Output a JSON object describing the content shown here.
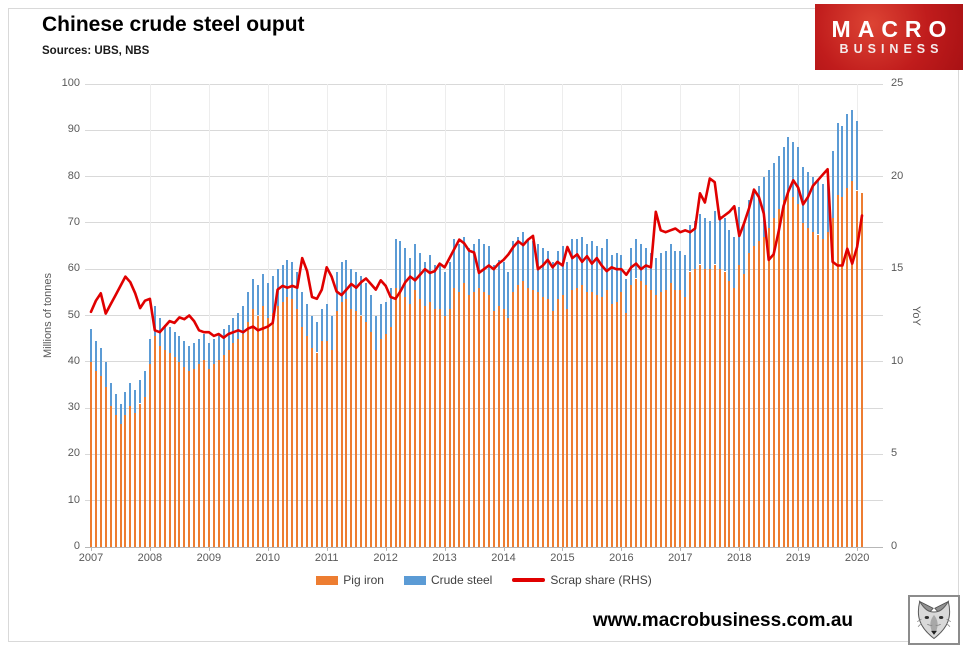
{
  "header": {
    "title": "Chinese crude steel ouput",
    "subtitle": "Sources: UBS, NBS",
    "logo": {
      "line1": "MACRO",
      "line2": "BUSINESS",
      "bg_color": "#c01c1c"
    }
  },
  "footer": {
    "website": "www.macrobusiness.com.au",
    "logo_name": "wolf-logo"
  },
  "colors": {
    "pig_iron": "#ED7D31",
    "crude_steel": "#5B9BD5",
    "scrap_share": "#E00000",
    "grid": "#d9d9d9",
    "axis_text": "#595959",
    "legend_text": "#404040"
  },
  "chart_data": {
    "type": "bar",
    "title": "Chinese crude steel ouput",
    "x_start": "2007-01",
    "x_end": "2020-02",
    "x_frequency": "monthly",
    "year_labels": [
      "2007",
      "2008",
      "2009",
      "2010",
      "2011",
      "2012",
      "2013",
      "2014",
      "2015",
      "2016",
      "2017",
      "2018",
      "2019",
      "2020"
    ],
    "left_axis": {
      "label": "Millions of tonnes",
      "min": 0,
      "max": 100,
      "step": 10,
      "ticks": [
        0,
        10,
        20,
        30,
        40,
        50,
        60,
        70,
        80,
        90,
        100
      ]
    },
    "right_axis": {
      "label": "YoY",
      "min": 0,
      "max": 25,
      "step": 5,
      "ticks": [
        0,
        5,
        10,
        15,
        20,
        25
      ]
    },
    "grid": "on",
    "legend_position": "bottom",
    "legend": [
      {
        "label": "Pig iron",
        "type": "bar",
        "color": "#ED7D31"
      },
      {
        "label": "Crude steel",
        "type": "bar",
        "color": "#5B9BD5"
      },
      {
        "label": "Scrap share (RHS)",
        "type": "line",
        "color": "#E00000"
      }
    ],
    "series": [
      {
        "name": "Pig iron",
        "type": "bar",
        "axis": "left",
        "color": "#ED7D31",
        "values": [
          40,
          38,
          37,
          34.5,
          30.5,
          28.5,
          26.5,
          28.5,
          30.5,
          29,
          31,
          32.5,
          39.5,
          45.5,
          43.5,
          42.5,
          42,
          41,
          40,
          39,
          38,
          38.5,
          39.5,
          40.5,
          38.5,
          39.5,
          40.5,
          41.5,
          42.5,
          44,
          45,
          46,
          48.5,
          51.5,
          50,
          52,
          49.5,
          50.5,
          52,
          53,
          54,
          53.5,
          51.5,
          47.5,
          45.5,
          43,
          42,
          44.5,
          44.5,
          42.5,
          51,
          53,
          53.5,
          51.5,
          51,
          50,
          48.5,
          46.5,
          42.5,
          45,
          46,
          47.5,
          56,
          55.5,
          54,
          52.5,
          55.5,
          53.5,
          52,
          53,
          51.5,
          51.5,
          50,
          51.5,
          56,
          55,
          57,
          54.5,
          55,
          56,
          55,
          54.5,
          51,
          52,
          51.5,
          49.5,
          55,
          56.5,
          57.5,
          56,
          55.5,
          55,
          54,
          53.5,
          51,
          53.5,
          54.5,
          51.5,
          55.5,
          56,
          56.5,
          55,
          55,
          54.5,
          54,
          55.5,
          52.5,
          53,
          55,
          50.5,
          56.5,
          58,
          57.5,
          56.5,
          55.5,
          54.5,
          55,
          55.5,
          57,
          55.5,
          55.5,
          54,
          59.5,
          60,
          61,
          60,
          60,
          61,
          60,
          59.5,
          57.5,
          56,
          61,
          59,
          63.5,
          65,
          66,
          67,
          69,
          71,
          73,
          75,
          76.5,
          75.5,
          74,
          70,
          69,
          68,
          67.5,
          66.5,
          68,
          71,
          76,
          75.5,
          77.5,
          79,
          77,
          76.5
        ]
      },
      {
        "name": "Crude steel",
        "type": "bar",
        "axis": "left",
        "color": "#5B9BD5",
        "values": [
          47,
          44.5,
          43,
          40,
          35.5,
          33,
          31,
          33.5,
          35.5,
          34,
          36,
          38,
          45,
          52,
          49.5,
          48,
          47.5,
          46.5,
          45.5,
          44.5,
          43.5,
          44,
          45,
          46,
          44,
          45,
          46,
          47,
          48,
          49.5,
          50.5,
          52,
          55,
          58,
          56.5,
          59,
          57,
          58.5,
          60,
          61,
          62,
          61.5,
          59.5,
          55,
          52.5,
          50,
          48.5,
          51.5,
          52.5,
          50,
          59.5,
          61.5,
          62,
          60,
          59.5,
          58.5,
          57,
          54.5,
          50,
          52.5,
          53,
          56,
          66.5,
          66,
          64.5,
          62.5,
          65.5,
          63.5,
          61.5,
          63,
          61,
          61,
          59.5,
          61.5,
          66.5,
          65.5,
          67,
          64.5,
          65.5,
          66.5,
          65.5,
          65,
          61,
          62,
          61.5,
          59.5,
          66,
          67,
          68,
          66.5,
          66,
          65.5,
          64.5,
          64,
          61.5,
          64,
          65,
          61.5,
          66.5,
          66.5,
          67,
          65.5,
          66,
          65,
          64.5,
          66.5,
          63,
          63.5,
          63,
          58,
          64.5,
          66.5,
          65.5,
          64.5,
          63.5,
          62.5,
          63.5,
          64,
          65.5,
          64,
          64,
          63,
          69.5,
          70.5,
          72,
          71,
          70.5,
          72.5,
          71.5,
          71,
          68.5,
          67,
          73.5,
          70,
          75,
          76.5,
          78,
          80,
          81.5,
          83,
          84.5,
          86.5,
          88.5,
          87.5,
          86.5,
          82,
          81,
          80,
          79.5,
          78.5,
          81,
          85.5,
          91.5,
          91,
          93.5,
          94.5,
          92,
          null
        ]
      },
      {
        "name": "Scrap share (RHS)",
        "type": "line",
        "axis": "right",
        "color": "#E00000",
        "values": [
          12.7,
          13.3,
          13.7,
          12.6,
          13.1,
          13.6,
          14.1,
          14.6,
          14.3,
          13.7,
          12.9,
          13.3,
          13.4,
          11.7,
          11.6,
          11.9,
          12.2,
          12.1,
          12.4,
          12.3,
          12.5,
          12.2,
          11.7,
          11.6,
          11.6,
          11.4,
          11.5,
          11.3,
          11.5,
          11.6,
          11.7,
          11.6,
          11.8,
          11.9,
          11.7,
          11.8,
          11.9,
          12.1,
          13.9,
          14.1,
          14.0,
          14.1,
          14.0,
          15.6,
          14.9,
          13.5,
          13.4,
          13.9,
          15.1,
          14.6,
          13.8,
          13.6,
          13.9,
          14.2,
          14.0,
          14.3,
          14.5,
          14.2,
          13.9,
          14.4,
          14.1,
          13.5,
          13.4,
          13.8,
          14.3,
          14.6,
          14.4,
          14.7,
          15.0,
          14.8,
          14.9,
          15.3,
          15.1,
          15.6,
          16.1,
          16.6,
          16.4,
          16.0,
          15.9,
          14.8,
          15.0,
          15.2,
          15.0,
          15.3,
          15.5,
          15.8,
          16.2,
          16.5,
          16.3,
          16.6,
          16.8,
          15.0,
          15.2,
          15.5,
          15.1,
          15.4,
          15.2,
          16.2,
          15.6,
          15.8,
          15.4,
          15.7,
          15.3,
          15.6,
          15.2,
          14.9,
          15.1,
          15.0,
          15.0,
          14.7,
          15.1,
          15.3,
          15.0,
          15.2,
          15.1,
          18.1,
          17.1,
          17.0,
          17.1,
          17.2,
          17.0,
          17.1,
          17.0,
          17.2,
          19.1,
          18.6,
          19.9,
          19.7,
          17.7,
          17.9,
          18.1,
          18.4,
          16.8,
          17.5,
          18.3,
          19.3,
          18.9,
          18.0,
          15.5,
          15.8,
          17.0,
          18.4,
          19.2,
          19.8,
          19.4,
          18.5,
          18.9,
          19.5,
          19.8,
          20.1,
          20.4,
          15.4,
          15.2,
          15.2,
          16.1,
          15.3,
          16.2,
          17.9
        ]
      }
    ]
  }
}
